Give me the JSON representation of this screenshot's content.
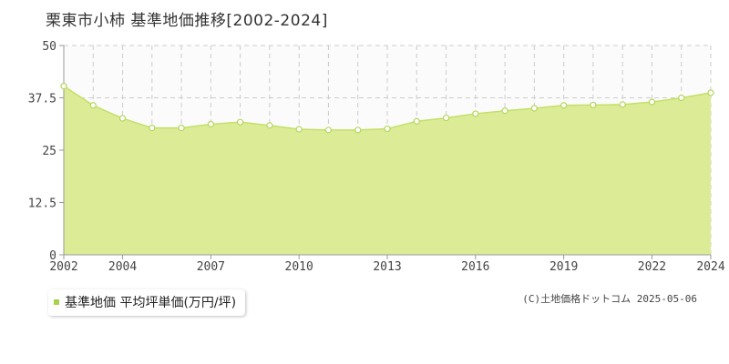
{
  "title": "栗東市小柿 基準地価推移[2002-2024]",
  "credit": "(C)土地価格ドットコム 2025-05-06",
  "colors": {
    "fill": "#dcec96",
    "line": "#c3e06a",
    "marker_fill": "#ffffff",
    "marker_stroke": "#b5d65a",
    "grid": "#cccccc",
    "axis": "#999999",
    "legend_swatch": "#a8d14a"
  },
  "chart_data": {
    "type": "area",
    "x": [
      2002,
      2003,
      2004,
      2005,
      2006,
      2007,
      2008,
      2009,
      2010,
      2011,
      2012,
      2013,
      2014,
      2015,
      2016,
      2017,
      2018,
      2019,
      2020,
      2021,
      2022,
      2023,
      2024
    ],
    "series": [
      {
        "name": "基準地価 平均坪単価(万円/坪)",
        "values": [
          40.3,
          35.7,
          32.6,
          30.3,
          30.3,
          31.2,
          31.7,
          30.9,
          30.0,
          29.8,
          29.8,
          30.1,
          31.9,
          32.7,
          33.7,
          34.4,
          35.0,
          35.7,
          35.8,
          35.9,
          36.5,
          37.5,
          38.7
        ]
      }
    ],
    "x_tick_labels": [
      "2002",
      "2004",
      "2007",
      "2010",
      "2013",
      "2016",
      "2019",
      "2022",
      "2024"
    ],
    "x_tick_values": [
      2002,
      2004,
      2007,
      2010,
      2013,
      2016,
      2019,
      2022,
      2024
    ],
    "y_tick_labels": [
      "0",
      "12.5",
      "25",
      "37.5",
      "50"
    ],
    "y_tick_values": [
      0,
      12.5,
      25,
      37.5,
      50
    ],
    "xlim": [
      2002,
      2024
    ],
    "ylim": [
      0,
      50
    ],
    "grid": true,
    "legend_position": "bottom-left",
    "title": "栗東市小柿 基準地価推移[2002-2024]",
    "xlabel": "",
    "ylabel": ""
  }
}
